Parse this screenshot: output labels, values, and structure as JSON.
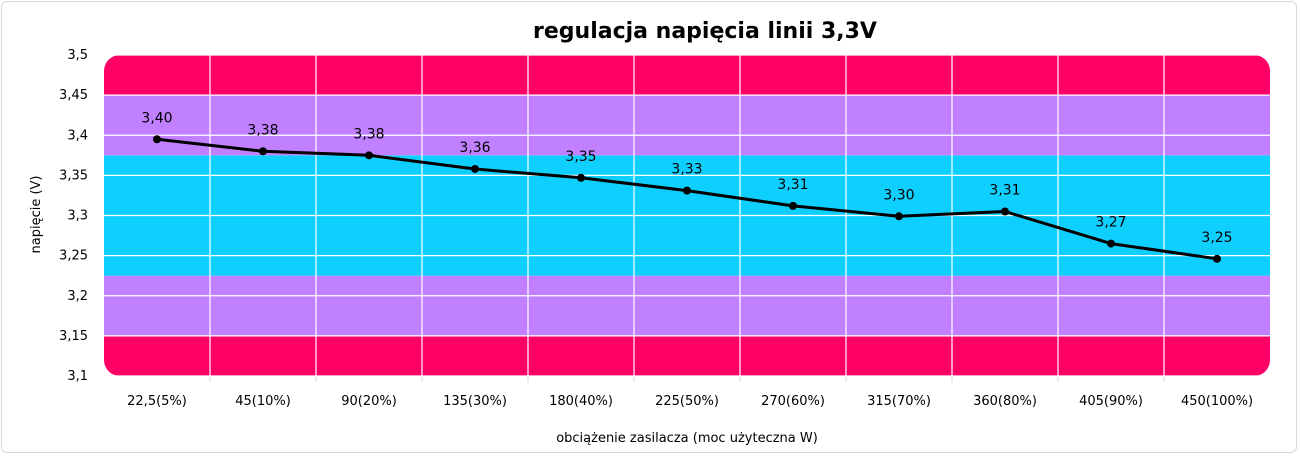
{
  "chart_data": {
    "type": "line",
    "title": "regulacja napięcia linii 3,3V",
    "xlabel": "obciążenie zasilacza (moc użyteczna W)",
    "ylabel": "napięcie (V)",
    "ylim": [
      3.1,
      3.5
    ],
    "ytick_values": [
      3.1,
      3.15,
      3.2,
      3.25,
      3.3,
      3.35,
      3.4,
      3.45,
      3.5
    ],
    "ytick_labels": [
      "3,1",
      "3,15",
      "3,2",
      "3,25",
      "3,3",
      "3,35",
      "3,4",
      "3,45",
      "3,5"
    ],
    "categories": [
      "22,5(5%)",
      "45(10%)",
      "90(20%)",
      "135(30%)",
      "180(40%)",
      "225(50%)",
      "270(60%)",
      "315(70%)",
      "360(80%)",
      "405(90%)",
      "450(100%)"
    ],
    "values": [
      3.395,
      3.38,
      3.375,
      3.358,
      3.347,
      3.331,
      3.312,
      3.299,
      3.305,
      3.265,
      3.246
    ],
    "data_labels": [
      "3,40",
      "3,38",
      "3,38",
      "3,36",
      "3,35",
      "3,33",
      "3,31",
      "3,30",
      "3,31",
      "3,27",
      "3,25"
    ],
    "grid": true,
    "line_color": "#000000",
    "bands": [
      {
        "from": 3.1,
        "to": 3.15,
        "color": "#ff0066"
      },
      {
        "from": 3.15,
        "to": 3.225,
        "color": "#c080ff"
      },
      {
        "from": 3.225,
        "to": 3.375,
        "color": "#0fcfff"
      },
      {
        "from": 3.375,
        "to": 3.45,
        "color": "#c080ff"
      },
      {
        "from": 3.45,
        "to": 3.5,
        "color": "#ff0066"
      }
    ]
  }
}
